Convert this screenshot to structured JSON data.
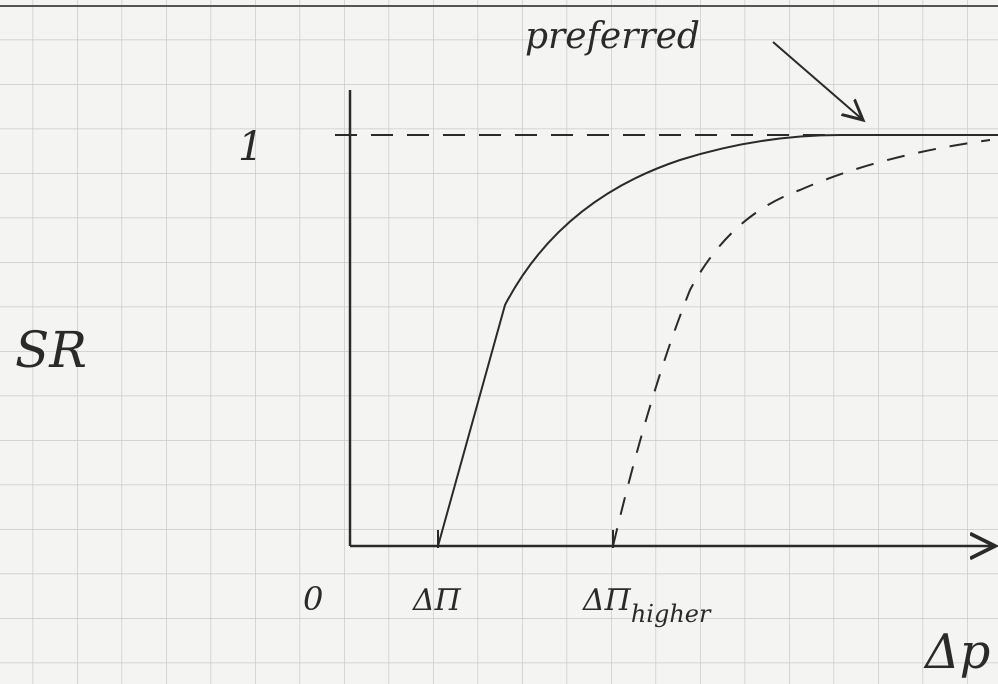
{
  "labels": {
    "preferred": "preferred",
    "y_one": "1",
    "y_axis": "SR",
    "origin": "0",
    "delta_pi": "ΔΠ",
    "delta_pi_higher": {
      "base": "ΔΠ",
      "subscript": "higher"
    },
    "x_axis": "Δp"
  }
}
